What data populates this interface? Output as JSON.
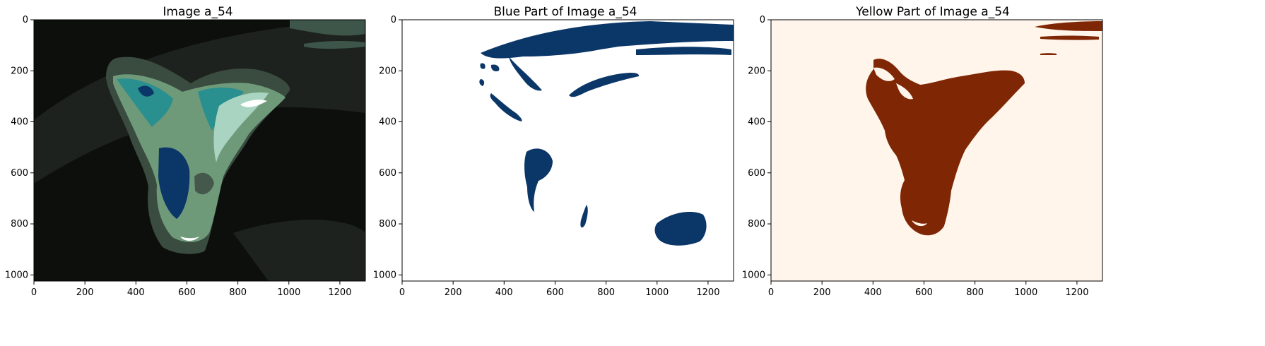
{
  "figure": {
    "panels": [
      {
        "id": "original",
        "title": "Image a_54"
      },
      {
        "id": "blue",
        "title": "Blue Part of Image a_54"
      },
      {
        "id": "yellow",
        "title": "Yellow Part of Image a_54"
      }
    ],
    "x_ticks": [
      "0",
      "200",
      "400",
      "600",
      "800",
      "1000",
      "1200"
    ],
    "y_ticks": [
      "0",
      "200",
      "400",
      "600",
      "800",
      "1000"
    ],
    "x_tick_values": [
      0,
      200,
      400,
      600,
      800,
      1000,
      1200
    ],
    "y_tick_values": [
      0,
      200,
      400,
      600,
      800,
      1000
    ],
    "image_width": 1300,
    "image_height": 1024,
    "colors": {
      "background_dark": "#0d0f0d",
      "haze": "#1d221e",
      "blue_mask": "#0b3768",
      "yellow_mask": "#7f2704",
      "yellow_bg": "#fff5eb",
      "teal": "#2a8f8f",
      "sage": "#7aa383",
      "mint": "#a9d4c1",
      "grey_green": "#45584c"
    }
  }
}
